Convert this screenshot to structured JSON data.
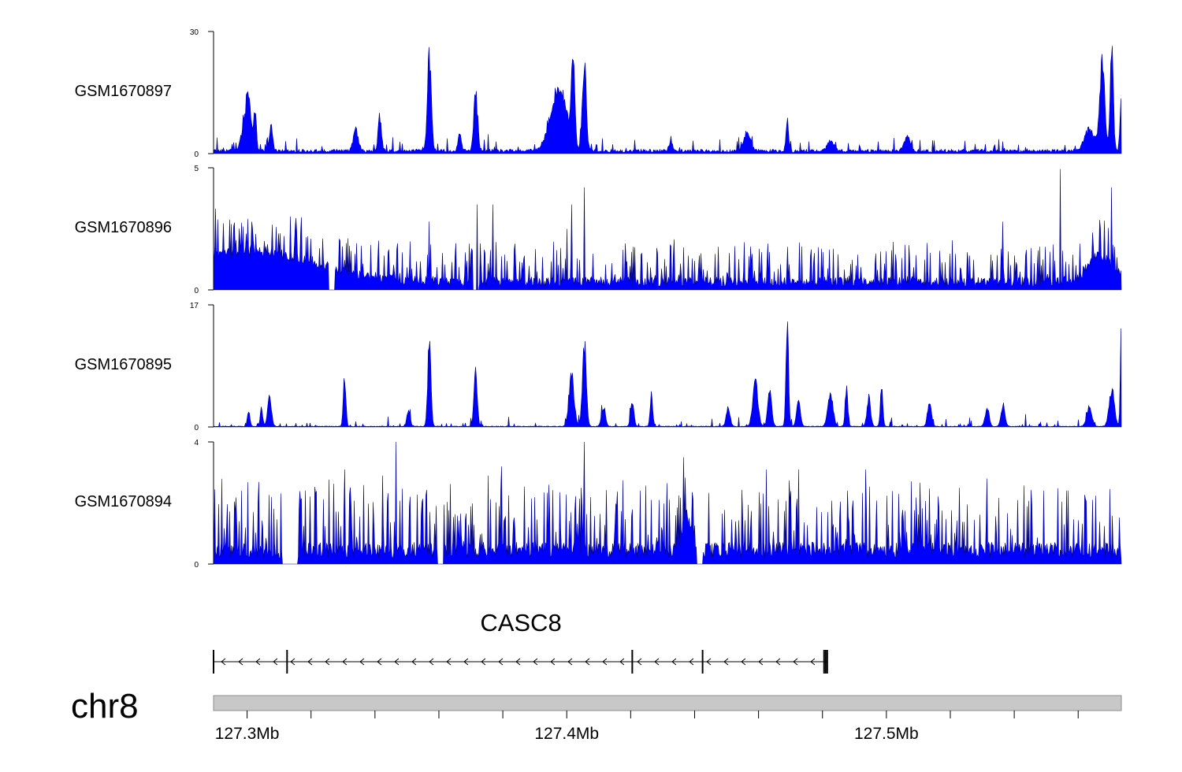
{
  "chart_data": {
    "type": "area",
    "chromosome": "chr8",
    "x_range_mb": [
      127.2895,
      127.5735
    ],
    "x_ticks_mb": [
      127.3,
      127.32,
      127.34,
      127.36,
      127.38,
      127.4,
      127.42,
      127.44,
      127.46,
      127.48,
      127.5,
      127.52,
      127.54,
      127.56
    ],
    "x_tick_labels": [
      {
        "value": 127.3,
        "label": "127.3Mb"
      },
      {
        "value": 127.4,
        "label": "127.4Mb"
      },
      {
        "value": 127.5,
        "label": "127.5Mb"
      }
    ],
    "colors": {
      "fill": "#0000ff",
      "stroke": "#00008b",
      "ideogram": "#c8c8c8"
    },
    "tracks": [
      {
        "name": "GSM1670897",
        "ylim": [
          0,
          30
        ],
        "ymax_label": "30",
        "ymin_label": "0",
        "baseline": 0.9,
        "noise": 0.9,
        "spikiness": 0.15,
        "peaks": [
          [
            127.2995,
            8,
            0.0012
          ],
          [
            127.3005,
            10,
            0.0008
          ],
          [
            127.3025,
            11,
            0.0004
          ],
          [
            127.3075,
            7,
            0.0005
          ],
          [
            127.334,
            6,
            0.0008
          ],
          [
            127.3415,
            10,
            0.0005
          ],
          [
            127.357,
            26,
            0.0006
          ],
          [
            127.3715,
            16,
            0.0006
          ],
          [
            127.3665,
            5,
            0.0005
          ],
          [
            127.3975,
            18,
            0.0025
          ],
          [
            127.402,
            25,
            0.0005
          ],
          [
            127.4055,
            25,
            0.0006
          ],
          [
            127.4325,
            3,
            0.0005
          ],
          [
            127.4565,
            5,
            0.001
          ],
          [
            127.469,
            9,
            0.0004
          ],
          [
            127.4825,
            3,
            0.001
          ],
          [
            127.5065,
            4,
            0.001
          ],
          [
            127.5635,
            6,
            0.0015
          ],
          [
            127.5675,
            24,
            0.0008
          ],
          [
            127.5705,
            29,
            0.0005
          ],
          [
            127.5735,
            15,
            0.0004
          ]
        ],
        "gaps": []
      },
      {
        "name": "GSM1670896",
        "ylim": [
          0,
          5
        ],
        "ymax_label": "5",
        "ymin_label": "0",
        "baseline": 0.45,
        "noise": 0.9,
        "spikiness": 1.0,
        "peaks": [
          [
            127.3,
            1.5,
            0.02
          ],
          [
            127.567,
            1.2,
            0.004
          ]
        ],
        "spikes": [
          [
            127.357,
            2.8
          ],
          [
            127.372,
            3.5
          ],
          [
            127.377,
            3.5
          ],
          [
            127.4015,
            3.5
          ],
          [
            127.4055,
            4.2
          ],
          [
            127.5545,
            4.95
          ],
          [
            127.5705,
            4.2
          ],
          [
            127.5365,
            2.8
          ],
          [
            127.4,
            2.5
          ]
        ],
        "gaps": [
          [
            127.3255,
            127.3275
          ],
          [
            127.3705,
            127.3725
          ]
        ]
      },
      {
        "name": "GSM1670895",
        "ylim": [
          0,
          17
        ],
        "ymax_label": "17",
        "ymin_label": "0",
        "baseline": 0.15,
        "noise": 0.6,
        "spikiness": 0.2,
        "peaks": [
          [
            127.3005,
            2.5,
            0.0004
          ],
          [
            127.3045,
            2.8,
            0.0004
          ],
          [
            127.307,
            4.5,
            0.0006
          ],
          [
            127.3305,
            8,
            0.0004
          ],
          [
            127.3505,
            2.5,
            0.0005
          ],
          [
            127.357,
            13,
            0.0005
          ],
          [
            127.3715,
            9,
            0.0005
          ],
          [
            127.4015,
            8,
            0.0008
          ],
          [
            127.4055,
            13,
            0.0006
          ],
          [
            127.4115,
            3,
            0.0006
          ],
          [
            127.4205,
            4,
            0.0005
          ],
          [
            127.4265,
            5,
            0.0004
          ],
          [
            127.4505,
            3,
            0.0006
          ],
          [
            127.459,
            7,
            0.0008
          ],
          [
            127.4635,
            6,
            0.0006
          ],
          [
            127.469,
            16,
            0.0004
          ],
          [
            127.4725,
            4,
            0.0006
          ],
          [
            127.4825,
            5,
            0.0008
          ],
          [
            127.4875,
            6,
            0.0004
          ],
          [
            127.4945,
            4,
            0.0006
          ],
          [
            127.4985,
            6,
            0.0004
          ],
          [
            127.5135,
            4,
            0.0006
          ],
          [
            127.5315,
            3,
            0.0006
          ],
          [
            127.5365,
            3.5,
            0.0006
          ],
          [
            127.5635,
            3,
            0.0008
          ],
          [
            127.5705,
            6,
            0.0008
          ],
          [
            127.5735,
            17,
            0.0003
          ]
        ],
        "gaps": []
      },
      {
        "name": "GSM1670894",
        "ylim": [
          0,
          4
        ],
        "ymax_label": "4",
        "ymin_label": "0",
        "baseline": 0.6,
        "noise": 0.9,
        "spikiness": 1.0,
        "peaks": [
          [
            127.4375,
            1.5,
            0.0012
          ]
        ],
        "spikes": [
          [
            127.3465,
            4.0
          ],
          [
            127.4055,
            4.0
          ],
          [
            127.4365,
            3.5
          ],
          [
            127.3795,
            3.2
          ],
          [
            127.3305,
            3.1
          ],
          [
            127.4625,
            3.1
          ],
          [
            127.4725,
            3.1
          ],
          [
            127.4935,
            3.1
          ],
          [
            127.3755,
            2.9
          ],
          [
            127.3425,
            2.9
          ],
          [
            127.5315,
            2.8
          ],
          [
            127.3945,
            2.6
          ]
        ],
        "gaps": [
          [
            127.311,
            127.3125
          ],
          [
            127.3125,
            127.316
          ],
          [
            127.3595,
            127.3615
          ],
          [
            127.4405,
            127.4425
          ]
        ]
      }
    ],
    "gene": {
      "name": "CASC8",
      "start_mb": 127.2895,
      "end_mb": 127.4815,
      "strand": "-",
      "exons_mb": [
        127.2895,
        127.3125,
        127.4205,
        127.4425,
        127.4805,
        127.481,
        127.4815
      ]
    }
  }
}
